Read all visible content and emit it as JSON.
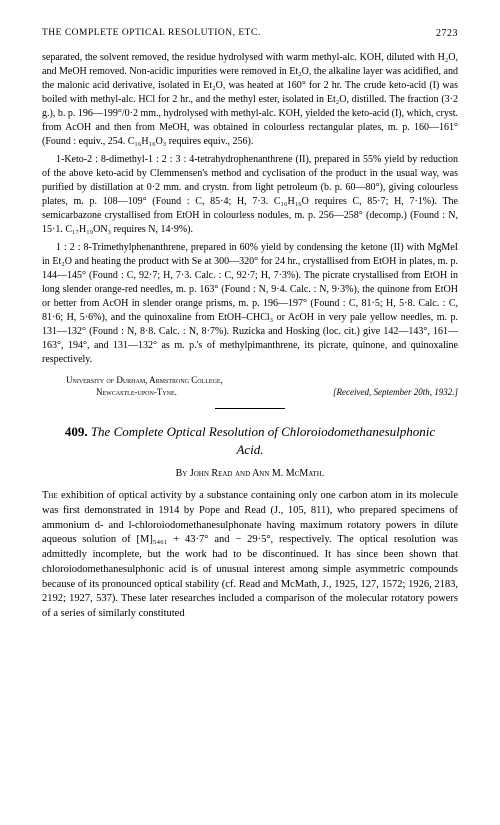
{
  "header": {
    "running_title": "THE COMPLETE OPTICAL RESOLUTION, ETC.",
    "page_number": "2723"
  },
  "body": {
    "para1": "separated, the solvent removed, the residue hydrolysed with warm methyl-alc. KOH, diluted with H₂O, and MeOH removed. Non-acidic impurities were removed in Et₂O, the alkaline layer was acidified, and the malonic acid derivative, isolated in Et₂O, was heated at 160° for 2 hr. The crude keto-acid (I) was boiled with methyl-alc. HCl for 2 hr., and the methyl ester, isolated in Et₂O, distilled. The fraction (3·2 g.), b. p. 196—199°/0·2 mm., hydrolysed with methyl-alc. KOH, yielded the keto-acid (I), which, cryst. from AcOH and then from MeOH, was obtained in colourless rectangular plates, m. p. 160—161° (Found : equiv., 254. C₁₆H₁₆O₃ requires equiv., 256).",
    "para2": "1-Keto-2 : 8-dimethyl-1 : 2 : 3 : 4-tetrahydrophenanthrene (II), prepared in 55% yield by reduction of the above keto-acid by Clemmensen's method and cyclisation of the product in the usual way, was purified by distillation at 0·2 mm. and crystn. from light petroleum (b. p. 60—80°), giving colourless plates, m. p. 108—109° (Found : C, 85·4; H, 7·3. C₁₆H₁₆O requires C, 85·7; H, 7·1%). The semicarbazone crystallised from EtOH in colourless nodules, m. p. 256—258° (decomp.) (Found : N, 15·1. C₁₇H₁₉ON₃ requires N, 14·9%).",
    "para3": "1 : 2 : 8-Trimethylphenanthrene, prepared in 60% yield by condensing the ketone (II) with MgMeI in Et₂O and heating the product with Se at 300—320° for 24 hr., crystallised from EtOH in plates, m. p. 144—145° (Found : C, 92·7; H, 7·3. Calc. : C, 92·7; H, 7·3%). The picrate crystallised from EtOH in long slender orange-red needles, m. p. 163° (Found : N, 9·4. Calc. : N, 9·3%), the quinone from EtOH or better from AcOH in slender orange prisms, m. p. 196—197° (Found : C, 81·5; H, 5·8. Calc. : C, 81·6; H, 5·6%), and the quinoxaline from EtOH–CHCl₃ or AcOH in very pale yellow needles, m. p. 131—132° (Found : N, 8·8. Calc. : N, 8·7%). Ruzicka and Hosking (loc. cit.) give 142—143°, 161—163°, 194°, and 131—132° as m. p.'s of methylpimanthrene, its picrate, quinone, and quinoxaline respectively."
  },
  "attribution": {
    "institution": "University of Durham, Armstrong College,",
    "place": "Newcastle-upon-Tyne.",
    "received": "[Received, September 20th, 1932.]"
  },
  "article": {
    "number": "409.",
    "title": "The Complete Optical Resolution of Chloroiodomethanesulphonic Acid.",
    "authors": "By John Read and Ann M. McMath.",
    "main_prefix": "The",
    "main_rest": " exhibition of optical activity by a substance containing only one carbon atom in its molecule was first demonstrated in 1914 by Pope and Read (J., 105, 811), who prepared specimens of ammonium d- and l-chloroiodomethanesulphonate having maximum rotatory powers in dilute aqueous solution of [M]₅₄₆₁ + 43·7° and − 29·5°, respectively. The optical resolution was admittedly incomplete, but the work had to be discontinued. It has since been shown that chloroiodomethanesulphonic acid is of unusual interest among simple asymmetric compounds because of its pronounced optical stability (cf. Read and McMath, J., 1925, 127, 1572; 1926, 2183, 2192; 1927, 537). These later researches included a comparison of the molecular rotatory powers of a series of similarly constituted"
  },
  "colors": {
    "text": "#000000",
    "background": "#ffffff"
  },
  "typography": {
    "body_fontsize": 10,
    "header_fontsize": 9.5,
    "title_fontsize": 13,
    "font_family": "Georgia, Times New Roman, serif"
  }
}
